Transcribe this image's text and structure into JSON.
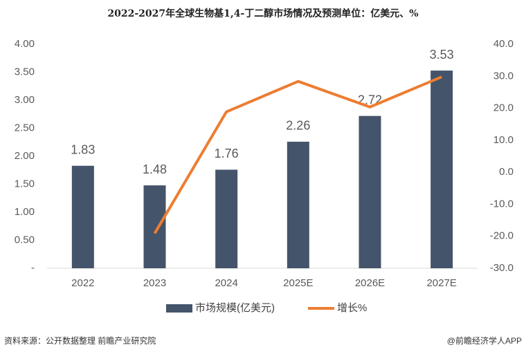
{
  "chart_data": {
    "type": "bar",
    "title": "2022-2027年全球生物基1,4-丁二醇市场情况及预测单位：亿美元、%",
    "categories": [
      "2022",
      "2023",
      "2024",
      "2025E",
      "2026E",
      "2027E"
    ],
    "series": [
      {
        "name": "市场规模(亿美元)",
        "type": "bar",
        "color": "#44546a",
        "values": [
          1.83,
          1.48,
          1.76,
          2.26,
          2.72,
          3.53
        ]
      },
      {
        "name": "增长%",
        "type": "line",
        "axis": "y2",
        "color": "#ed7d31",
        "values": [
          null,
          -19.1,
          18.9,
          28.4,
          20.4,
          29.8
        ]
      }
    ],
    "ylim": [
      0,
      4
    ],
    "yticks": [
      {
        "value": 0,
        "label": "-"
      },
      {
        "value": 0.5,
        "label": "0.50"
      },
      {
        "value": 1,
        "label": "1.00"
      },
      {
        "value": 1.5,
        "label": "1.50"
      },
      {
        "value": 2,
        "label": "2.00"
      },
      {
        "value": 2.5,
        "label": "2.50"
      },
      {
        "value": 3,
        "label": "3.00"
      },
      {
        "value": 3.5,
        "label": "3.50"
      },
      {
        "value": 4,
        "label": "4.00"
      }
    ],
    "y2lim": [
      -30,
      40
    ],
    "y2ticks": [
      {
        "value": -30,
        "label": "-30.0"
      },
      {
        "value": -20,
        "label": "-20.0"
      },
      {
        "value": -10,
        "label": "-10.0"
      },
      {
        "value": 0,
        "label": "0.0"
      },
      {
        "value": 10,
        "label": "10.0"
      },
      {
        "value": 20,
        "label": "20.0"
      },
      {
        "value": 30,
        "label": "30.0"
      },
      {
        "value": 40,
        "label": "40.0"
      }
    ],
    "legend": "bottom",
    "source": "资料来源：公开数据整理 前瞻产业研究院",
    "credit": "@前瞻经济学人APP"
  }
}
